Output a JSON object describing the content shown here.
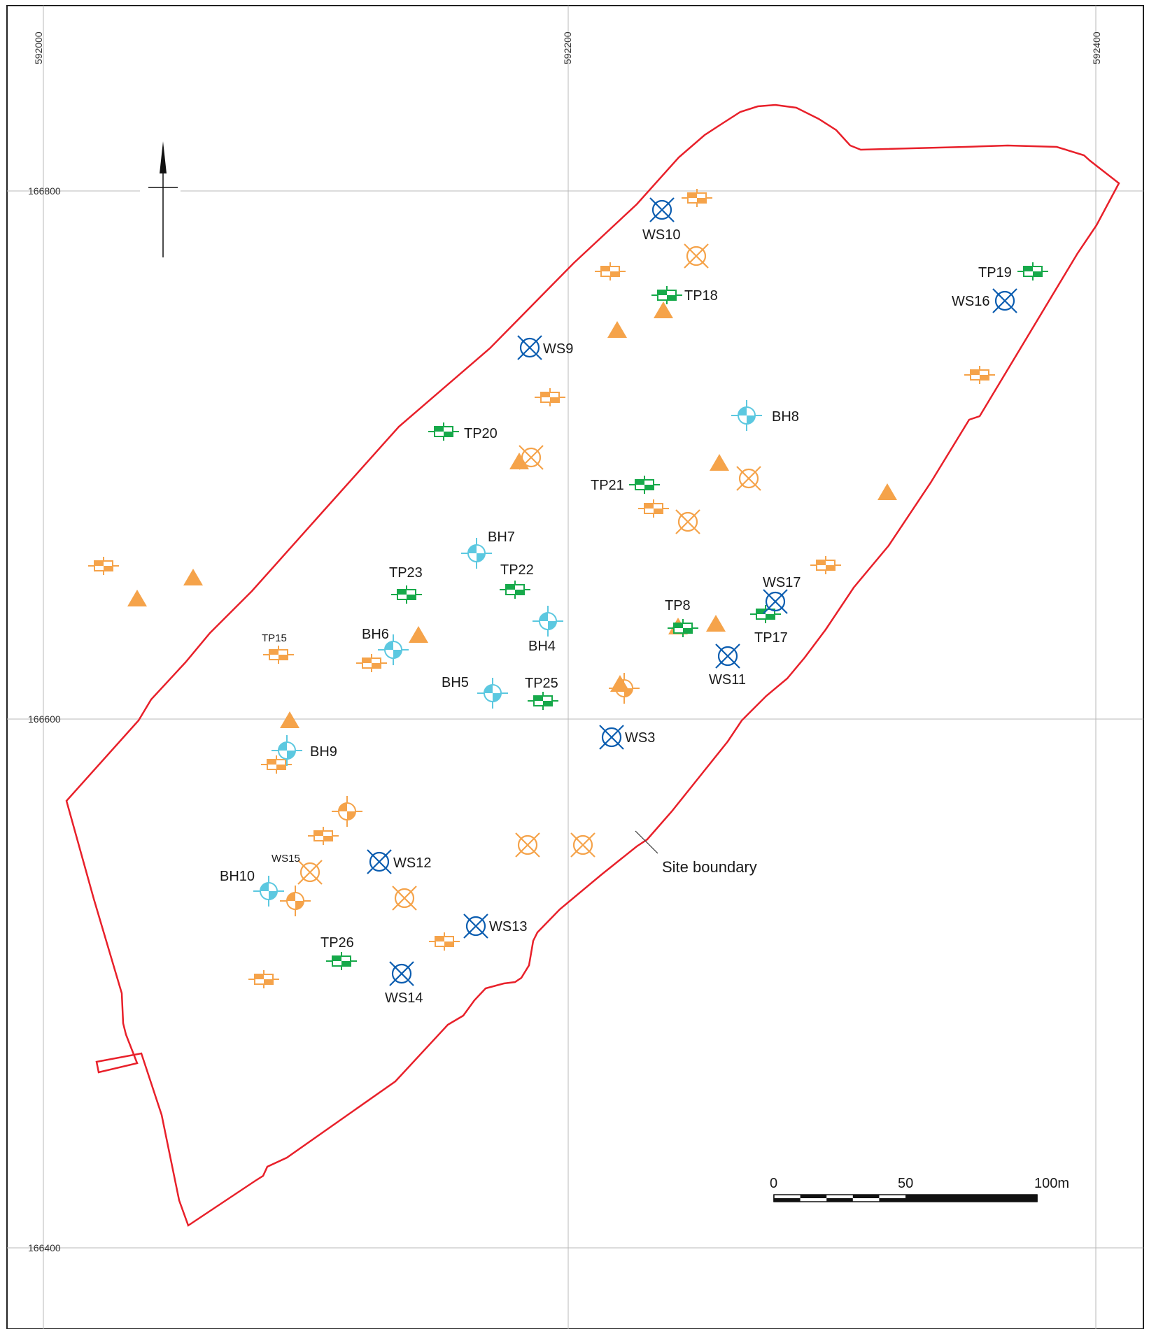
{
  "colors": {
    "boundary": "#e8202a",
    "grid": "#b9b9b9",
    "trial_pit_new": "#16a94a",
    "trial_pit_old": "#f5a34a",
    "borehole": "#5cc8e0",
    "window_sample": "#0b5db0",
    "triangle": "#f5a34a"
  },
  "grid": {
    "eastings": [
      "592000",
      "592200",
      "592400"
    ],
    "northings": [
      "166800",
      "166600",
      "166400"
    ]
  },
  "callout": {
    "label": "Site boundary"
  },
  "scale_bar": {
    "ticks": [
      "0",
      "50",
      "100m"
    ]
  },
  "labels": {
    "WS10": "WS10",
    "TP19": "TP19",
    "TP18": "TP18",
    "WS16": "WS16",
    "WS9": "WS9",
    "BH8": "BH8",
    "TP20": "TP20",
    "TP21": "TP21",
    "BH7": "BH7",
    "TP23": "TP23",
    "TP22": "TP22",
    "WS17": "WS17",
    "TP8": "TP8",
    "TP15": "TP15",
    "BH6": "BH6",
    "BH4": "BH4",
    "TP17": "TP17",
    "WS11": "WS11",
    "BH5": "BH5",
    "TP25": "TP25",
    "WS3": "WS3",
    "BH9": "BH9",
    "WS15": "WS15",
    "WS12": "WS12",
    "BH10": "BH10",
    "WS13": "WS13",
    "TP26": "TP26",
    "WS14": "WS14"
  }
}
